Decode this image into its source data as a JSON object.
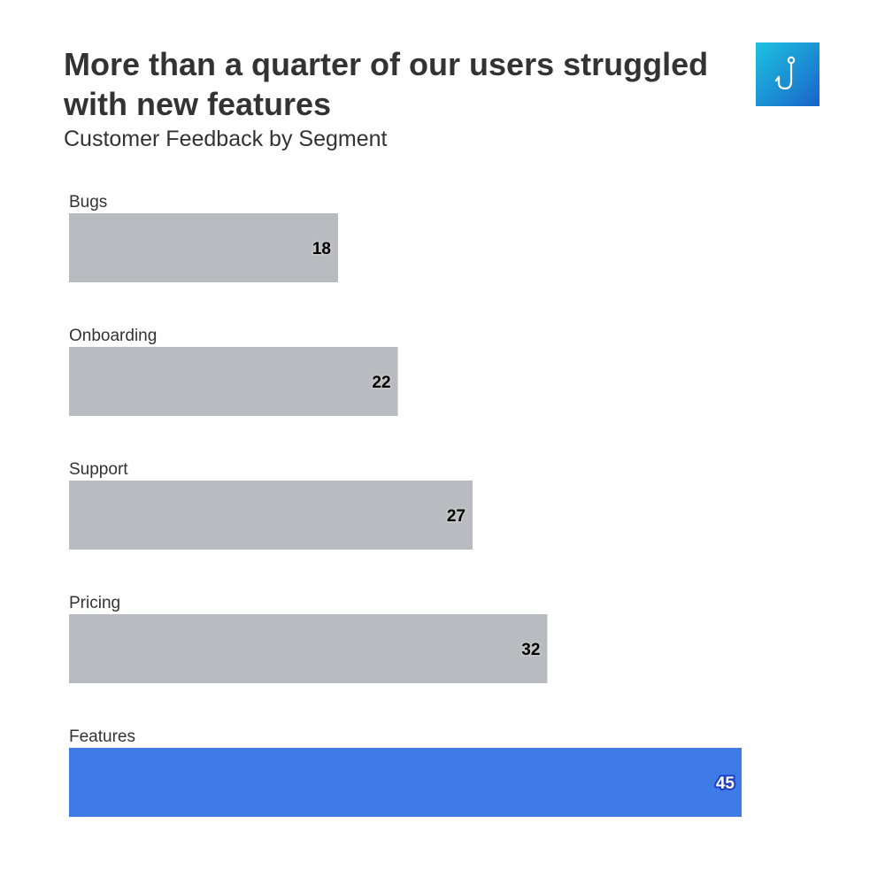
{
  "title": "More than a quarter of our users struggled with new features",
  "subtitle": "Customer Feedback by Segment",
  "logo": {
    "icon": "hook-icon",
    "gradient_start": "#1dc3e0",
    "gradient_end": "#1a63c9"
  },
  "chart_data": {
    "type": "bar",
    "orientation": "horizontal",
    "title": "More than a quarter of our users struggled with new features",
    "subtitle": "Customer Feedback by Segment",
    "categories": [
      "Bugs",
      "Onboarding",
      "Support",
      "Pricing",
      "Features"
    ],
    "values": [
      18,
      22,
      27,
      32,
      45
    ],
    "highlight": "Features",
    "colors": {
      "default": "#b8bbbf",
      "highlight": "#3f7be6"
    },
    "xlim": [
      0,
      45
    ],
    "xlabel": "",
    "ylabel": "",
    "grid": false,
    "legend": "none"
  }
}
